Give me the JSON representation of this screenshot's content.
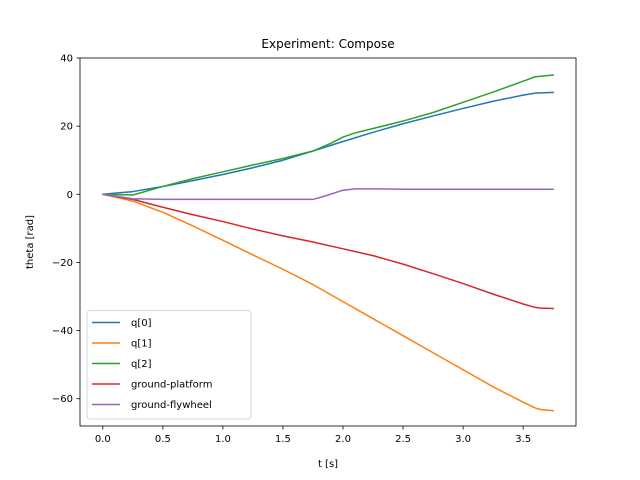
{
  "chart_data": {
    "type": "line",
    "title": "Experiment: Compose",
    "xlabel": "t [s]",
    "ylabel": "theta [rad]",
    "xlim": [
      -0.19,
      3.94
    ],
    "ylim": [
      -68,
      40
    ],
    "xticks": [
      0.0,
      0.5,
      1.0,
      1.5,
      2.0,
      2.5,
      3.0,
      3.5
    ],
    "xtick_labels": [
      "0.0",
      "0.5",
      "1.0",
      "1.5",
      "2.0",
      "2.5",
      "3.0",
      "3.5"
    ],
    "yticks": [
      40,
      20,
      0,
      -20,
      -40,
      -60
    ],
    "ytick_labels": [
      "40",
      "20",
      "0",
      "−20",
      "−40",
      "−60"
    ],
    "grid": false,
    "legend_position": "lower-left",
    "series": [
      {
        "name": "q[0]",
        "color": "#1f77b4",
        "x": [
          0.0,
          0.25,
          0.5,
          0.75,
          1.0,
          1.25,
          1.5,
          1.75,
          2.0,
          2.25,
          2.5,
          2.75,
          3.0,
          3.25,
          3.5,
          3.6,
          3.75
        ],
        "y": [
          0.0,
          0.8,
          2.3,
          4.0,
          5.8,
          7.8,
          10.0,
          12.7,
          15.5,
          18.2,
          20.7,
          23.0,
          25.2,
          27.3,
          29.1,
          29.7,
          29.9
        ]
      },
      {
        "name": "q[1]",
        "color": "#ff7f0e",
        "x": [
          0.0,
          0.25,
          0.5,
          0.75,
          1.0,
          1.25,
          1.5,
          1.75,
          2.0,
          2.25,
          2.5,
          2.75,
          3.0,
          3.25,
          3.5,
          3.6,
          3.65,
          3.75
        ],
        "y": [
          0.0,
          -2.0,
          -5.3,
          -9.3,
          -13.5,
          -17.8,
          -22.0,
          -26.5,
          -31.5,
          -36.5,
          -41.5,
          -46.5,
          -51.5,
          -56.5,
          -61.0,
          -62.7,
          -63.2,
          -63.5
        ]
      },
      {
        "name": "q[2]",
        "color": "#2ca02c",
        "x": [
          0.0,
          0.25,
          0.5,
          0.75,
          1.0,
          1.25,
          1.5,
          1.75,
          1.9,
          2.0,
          2.1,
          2.25,
          2.5,
          2.75,
          3.0,
          3.25,
          3.5,
          3.6,
          3.75
        ],
        "y": [
          0.0,
          -0.2,
          2.3,
          4.6,
          6.6,
          8.6,
          10.5,
          12.7,
          15.0,
          16.8,
          18.0,
          19.3,
          21.5,
          24.0,
          27.0,
          30.0,
          33.2,
          34.5,
          35.0
        ]
      },
      {
        "name": "ground-platform",
        "color": "#d62728",
        "x": [
          0.0,
          0.25,
          0.5,
          0.75,
          1.0,
          1.25,
          1.5,
          1.75,
          2.0,
          2.25,
          2.5,
          2.75,
          3.0,
          3.25,
          3.5,
          3.6,
          3.65,
          3.75
        ],
        "y": [
          0.0,
          -1.5,
          -3.8,
          -6.0,
          -8.0,
          -10.2,
          -12.2,
          -14.0,
          -16.0,
          -18.0,
          -20.5,
          -23.3,
          -26.2,
          -29.3,
          -32.2,
          -33.2,
          -33.4,
          -33.5
        ]
      },
      {
        "name": "ground-flywheel",
        "color": "#9467bd",
        "x": [
          0.0,
          0.25,
          0.5,
          1.0,
          1.5,
          1.75,
          1.85,
          2.0,
          2.1,
          2.25,
          2.5,
          3.0,
          3.5,
          3.75
        ],
        "y": [
          0.0,
          -1.3,
          -1.5,
          -1.5,
          -1.5,
          -1.5,
          -0.5,
          1.2,
          1.6,
          1.6,
          1.5,
          1.5,
          1.5,
          1.5
        ]
      }
    ]
  }
}
